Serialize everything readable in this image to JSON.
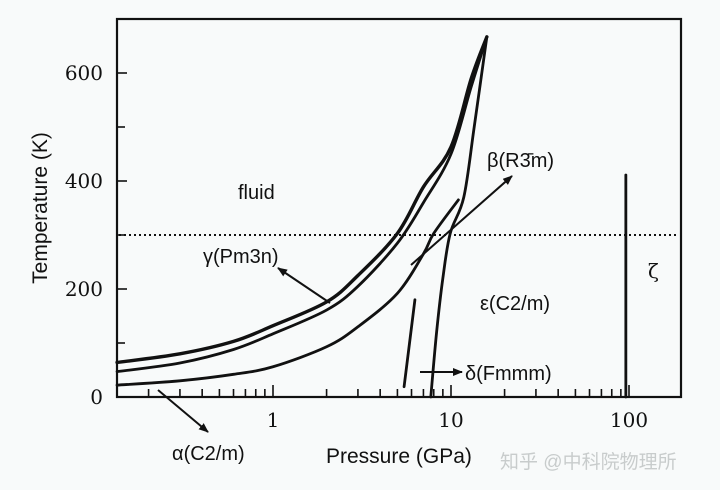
{
  "chart_data": {
    "type": "line",
    "title": "",
    "xlabel": "Pressure (GPa)",
    "ylabel": "Temperature (K)",
    "xscale": "log",
    "xlim": [
      0.133,
      200
    ],
    "ylim": [
      0,
      690
    ],
    "xticks": [
      {
        "v": 1,
        "label": "1"
      },
      {
        "v": 10,
        "label": "10"
      },
      {
        "v": 100,
        "label": "100"
      }
    ],
    "yticks": [
      {
        "v": 0,
        "label": "0"
      },
      {
        "v": 200,
        "label": "200"
      },
      {
        "v": 400,
        "label": "400"
      },
      {
        "v": 600,
        "label": "600"
      }
    ],
    "yminor": [
      100,
      300,
      500
    ],
    "reference_line": {
      "name": "room temperature",
      "T": 300,
      "style": "dotted"
    },
    "series": [
      {
        "name": "fluid-gamma boundary",
        "points": [
          [
            0.133,
            64
          ],
          [
            0.3,
            80
          ],
          [
            0.6,
            103
          ],
          [
            1,
            132
          ],
          [
            2,
            176
          ],
          [
            3,
            225
          ],
          [
            5,
            303
          ],
          [
            7,
            389
          ],
          [
            10,
            463
          ],
          [
            13,
            590
          ],
          [
            15.9,
            667
          ]
        ]
      },
      {
        "name": "gamma-beta boundary",
        "points": [
          [
            0.133,
            47
          ],
          [
            0.3,
            63
          ],
          [
            0.6,
            88
          ],
          [
            1,
            117
          ],
          [
            2,
            161
          ],
          [
            3,
            205
          ],
          [
            5,
            285
          ],
          [
            7,
            360
          ],
          [
            10,
            450
          ],
          [
            13,
            575
          ],
          [
            15.9,
            667
          ]
        ]
      },
      {
        "name": "beta-epsilon boundary",
        "points": [
          [
            0.133,
            22
          ],
          [
            0.3,
            30
          ],
          [
            0.6,
            42
          ],
          [
            1,
            56
          ],
          [
            2,
            93
          ],
          [
            3,
            130
          ],
          [
            5,
            192
          ],
          [
            7,
            265
          ],
          [
            8,
            303
          ],
          [
            11,
            365
          ]
        ]
      },
      {
        "name": "delta-epsilon boundary",
        "points": [
          [
            7.7,
            0
          ],
          [
            8.3,
            120
          ],
          [
            9.0,
            220
          ],
          [
            9.9,
            303
          ],
          [
            11.8,
            370
          ],
          [
            13.5,
            500
          ],
          [
            15.9,
            667
          ]
        ]
      },
      {
        "name": "delta short boundary",
        "points": [
          [
            5.45,
            19
          ],
          [
            6.27,
            180
          ]
        ]
      },
      {
        "name": "zeta boundary",
        "points": [
          [
            96,
            0
          ],
          [
            96,
            411
          ]
        ]
      }
    ],
    "annotations": [
      {
        "id": "fluid",
        "text": "fluid"
      },
      {
        "id": "beta",
        "text": "β(R3̄m)"
      },
      {
        "id": "gamma",
        "text": "γ(Pm3n)"
      },
      {
        "id": "epsilon",
        "text": "ε(C2/m)"
      },
      {
        "id": "delta",
        "text": "δ(Fmmm)"
      },
      {
        "id": "zeta",
        "text": "ζ"
      },
      {
        "id": "alpha",
        "text": "α(C2/m)"
      }
    ],
    "grid": false,
    "watermark": "知乎 @中科院物理所"
  }
}
